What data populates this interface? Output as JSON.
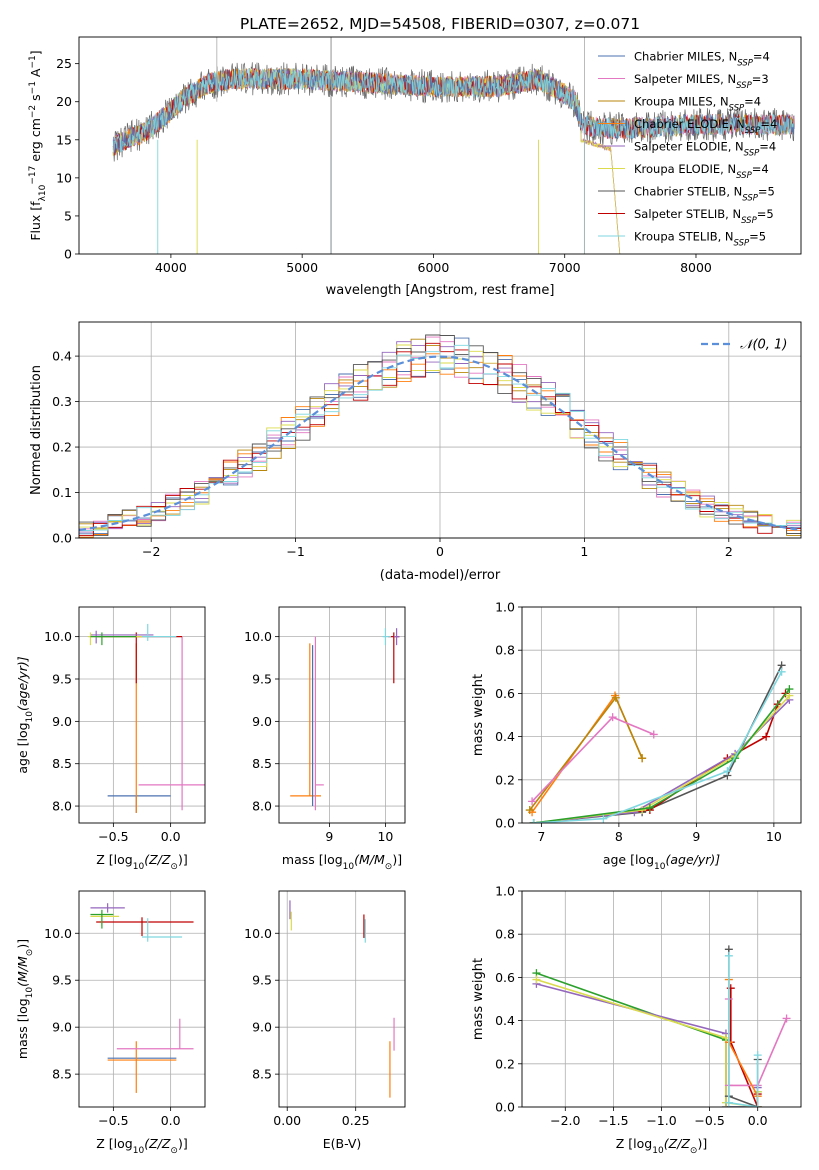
{
  "chart_data": [
    {
      "id": "spectrum",
      "type": "line",
      "title": "PLATE=2652, MJD=54508, FIBERID=0307, z=0.071",
      "xlabel": "wavelength [Angstrom, rest frame]",
      "ylabel": "Flux [f",
      "ylabel_parts": [
        "Flux [f",
        "λ",
        "10",
        "−17",
        " erg cm",
        "−2",
        " s",
        "−1",
        " A",
        "−1",
        "]"
      ],
      "xlim": [
        3300,
        8800
      ],
      "ylim": [
        0,
        28.5
      ],
      "xticks": [
        4000,
        5000,
        6000,
        7000,
        8000
      ],
      "yticks": [
        0,
        5,
        10,
        15,
        20,
        25
      ],
      "grid": false,
      "legend_position": "top-right",
      "legend": [
        {
          "name": "Chabrier MILES, N",
          "sub": "SSP",
          "val": "=4",
          "color": "#4c72b0"
        },
        {
          "name": "Salpeter MILES, N",
          "sub": "SSP",
          "val": "=3",
          "color": "#e377c2"
        },
        {
          "name": "Kroupa MILES, N",
          "sub": "SSP",
          "val": "=4",
          "color": "#b8860b"
        },
        {
          "name": "Chabrier ELODIE, N",
          "sub": "SSP",
          "val": "=4",
          "color": "#ff7f0e"
        },
        {
          "name": "Salpeter ELODIE, N",
          "sub": "SSP",
          "val": "=4",
          "color": "#9467bd"
        },
        {
          "name": "Kroupa ELODIE, N",
          "sub": "SSP",
          "val": "=4",
          "color": "#dbdb4d"
        },
        {
          "name": "Chabrier STELIB, N",
          "sub": "SSP",
          "val": "=5",
          "color": "#555555"
        },
        {
          "name": "Salpeter STELIB, N",
          "sub": "SSP",
          "val": "=5",
          "color": "#c00000"
        },
        {
          "name": "Kroupa STELIB, N",
          "sub": "SSP",
          "val": "=5",
          "color": "#7fd7e0"
        }
      ],
      "continuum": [
        [
          3550,
          14
        ],
        [
          3650,
          15
        ],
        [
          3800,
          16
        ],
        [
          3950,
          18
        ],
        [
          4100,
          20.5
        ],
        [
          4300,
          22.5
        ],
        [
          4500,
          23
        ],
        [
          5000,
          23
        ],
        [
          5500,
          22.5
        ],
        [
          6000,
          22
        ],
        [
          6500,
          22
        ],
        [
          6800,
          23
        ],
        [
          7000,
          21
        ],
        [
          7080,
          20
        ],
        [
          7130,
          17
        ],
        [
          7300,
          16.5
        ],
        [
          7500,
          16.5
        ],
        [
          8000,
          17
        ],
        [
          8700,
          17
        ]
      ],
      "spikes": [
        [
          3900,
          0
        ],
        [
          4200,
          0
        ],
        [
          5220,
          0
        ],
        [
          6800,
          0
        ],
        [
          7150,
          0
        ]
      ]
    },
    {
      "id": "residuals",
      "type": "line",
      "xlabel": "(data-model)/error",
      "ylabel": "Normed distribution",
      "xlim": [
        -2.5,
        2.5
      ],
      "ylim": [
        0,
        0.475
      ],
      "xticks": [
        -2,
        -1,
        0,
        1,
        2
      ],
      "xtick_labels": [
        "−2",
        "−1",
        "0",
        "1",
        "2"
      ],
      "yticks": [
        0,
        0.1,
        0.2,
        0.3,
        0.4
      ],
      "ytick_labels": [
        "0.0",
        "0.1",
        "0.2",
        "0.3",
        "0.4"
      ],
      "grid": true,
      "legend": "𝒩(0, 1)",
      "gaussian": {
        "mean": 0,
        "sigma": 1,
        "color": "#5b8fd9"
      },
      "bin_width": 0.1
    },
    {
      "id": "age-vs-Z",
      "type": "scatter",
      "xlabel": "Z [log",
      "xlabel_parts": [
        "Z [log",
        "10",
        "(Z/Z",
        "⊙",
        ")]"
      ],
      "ylabel_parts": [
        "age  [log",
        "10",
        "(age/yr)]"
      ],
      "xlim": [
        -0.8,
        0.3
      ],
      "ylim": [
        7.8,
        10.35
      ],
      "xticks": [
        -0.5,
        0.0
      ],
      "xtick_labels": [
        "−0.5",
        "0.0"
      ],
      "yticks": [
        8.0,
        8.5,
        9.0,
        9.5,
        10.0
      ],
      "ytick_labels": [
        "8.0",
        "8.5",
        "9.0",
        "9.5",
        "10.0"
      ],
      "grid": true,
      "points": [
        {
          "x": -0.3,
          "y": 8.12,
          "xerr": [
            0.25,
            0.3
          ],
          "yerr": [
            0.2,
            0.0
          ],
          "color": "#4c72b0"
        },
        {
          "x": -0.3,
          "y": 8.12,
          "xerr": [
            0.0,
            0.0
          ],
          "yerr": [
            0.2,
            1.8
          ],
          "color": "#ff7f0e"
        },
        {
          "x": 0.1,
          "y": 8.25,
          "xerr": [
            0.38,
            0.2
          ],
          "yerr": [
            0.3,
            1.75
          ],
          "color": "#e377c2"
        },
        {
          "x": -0.3,
          "y": 10.0,
          "xerr": [
            0.35,
            0.4
          ],
          "yerr": [
            0.55,
            0.05
          ],
          "color": "#c00000"
        },
        {
          "x": -0.65,
          "y": 10.02,
          "xerr": [
            0.05,
            0.5
          ],
          "yerr": [
            0.1,
            0.05
          ],
          "color": "#9467bd"
        },
        {
          "x": -0.7,
          "y": 10.0,
          "xerr": [
            0.02,
            0.5
          ],
          "yerr": [
            0.1,
            0.05
          ],
          "color": "#dbdb4d"
        },
        {
          "x": -0.2,
          "y": 10.0,
          "xerr": [
            0.05,
            0.25
          ],
          "yerr": [
            0.05,
            0.15
          ],
          "color": "#7fd7e0"
        },
        {
          "x": -0.6,
          "y": 10.0,
          "xerr": [
            0.1,
            0.3
          ],
          "yerr": [
            0.1,
            0.05
          ],
          "color": "#2ca02c"
        }
      ]
    },
    {
      "id": "age-vs-mass",
      "type": "scatter",
      "xlabel_parts": [
        "mass [log",
        "10",
        "(M/M",
        "⊙",
        ")]"
      ],
      "xlim": [
        8.1,
        10.35
      ],
      "ylim": [
        7.8,
        10.35
      ],
      "xticks": [
        9,
        10
      ],
      "xtick_labels": [
        "9",
        "10"
      ],
      "yticks": [
        8.0,
        8.5,
        9.0,
        9.5,
        10.0
      ],
      "ytick_labels": [
        "8.0",
        "8.5",
        "9.0",
        "9.5",
        "10.0"
      ],
      "grid": true,
      "points": [
        {
          "x": 8.65,
          "y": 8.12,
          "xerr": [
            0.35,
            0.2
          ],
          "yerr": [
            0.0,
            1.8
          ],
          "color": "#ff7f0e"
        },
        {
          "x": 8.75,
          "y": 8.25,
          "xerr": [
            0.0,
            0.15
          ],
          "yerr": [
            0.3,
            1.75
          ],
          "color": "#e377c2"
        },
        {
          "x": 8.7,
          "y": 9.0,
          "xerr": [
            0.0,
            0.0
          ],
          "yerr": [
            1.0,
            0.9
          ],
          "color": "#4c72b0"
        },
        {
          "x": 10.15,
          "y": 10.0,
          "xerr": [
            0.1,
            0.1
          ],
          "yerr": [
            0.55,
            0.05
          ],
          "color": "#c00000"
        },
        {
          "x": 10.2,
          "y": 10.0,
          "xerr": [
            0.05,
            0.05
          ],
          "yerr": [
            0.1,
            0.1
          ],
          "color": "#9467bd"
        },
        {
          "x": 10.0,
          "y": 10.0,
          "xerr": [
            0.05,
            0.1
          ],
          "yerr": [
            0.1,
            0.1
          ],
          "color": "#7fd7e0"
        }
      ]
    },
    {
      "id": "weight-vs-age",
      "type": "line",
      "xlabel_parts": [
        "age  [log",
        "10",
        "(age/yr)]"
      ],
      "ylabel": "mass weight",
      "xlim": [
        6.75,
        10.35
      ],
      "ylim": [
        0,
        1.0
      ],
      "xticks": [
        7,
        8,
        9,
        10
      ],
      "xtick_labels": [
        "7",
        "8",
        "9",
        "10"
      ],
      "yticks": [
        0,
        0.2,
        0.4,
        0.6,
        0.8,
        1.0
      ],
      "ytick_labels": [
        "0.0",
        "0.2",
        "0.4",
        "0.6",
        "0.8",
        "1.0"
      ],
      "grid": true,
      "series": [
        {
          "color": "#ff7f0e",
          "x": [
            6.88,
            7.95,
            8.3
          ],
          "y": [
            0.05,
            0.59,
            0.3
          ]
        },
        {
          "color": "#b8860b",
          "x": [
            6.85,
            7.96,
            8.3
          ],
          "y": [
            0.06,
            0.58,
            0.3
          ]
        },
        {
          "color": "#e377c2",
          "x": [
            6.88,
            7.92,
            8.45
          ],
          "y": [
            0.1,
            0.49,
            0.41
          ]
        },
        {
          "color": "#555555",
          "x": [
            6.9,
            8.3,
            9.4,
            10.1
          ],
          "y": [
            0.0,
            0.05,
            0.22,
            0.73
          ]
        },
        {
          "color": "#c00000",
          "x": [
            6.9,
            8.4,
            9.4,
            9.9,
            10.05,
            10.15
          ],
          "y": [
            0.0,
            0.06,
            0.3,
            0.4,
            0.55,
            0.6
          ]
        },
        {
          "color": "#9467bd",
          "x": [
            6.9,
            8.2,
            9.5,
            10.2
          ],
          "y": [
            0.0,
            0.05,
            0.32,
            0.57
          ]
        },
        {
          "color": "#dbdb4d",
          "x": [
            6.9,
            8.3,
            9.5,
            10.2
          ],
          "y": [
            0.0,
            0.06,
            0.31,
            0.59
          ]
        },
        {
          "color": "#2ca02c",
          "x": [
            6.9,
            8.4,
            9.5,
            10.2
          ],
          "y": [
            0.0,
            0.07,
            0.3,
            0.62
          ]
        },
        {
          "color": "#7fd7e0",
          "x": [
            6.9,
            7.8,
            9.4,
            10.1
          ],
          "y": [
            0.0,
            0.02,
            0.24,
            0.7
          ]
        }
      ]
    },
    {
      "id": "mass-vs-Z",
      "type": "scatter",
      "xlabel_parts": [
        "Z [log",
        "10",
        "(Z/Z",
        "⊙",
        ")]"
      ],
      "ylabel_parts": [
        "mass [log",
        "10",
        "(M/M",
        "⊙",
        ")]"
      ],
      "xlim": [
        -0.8,
        0.3
      ],
      "ylim": [
        8.15,
        10.45
      ],
      "xticks": [
        -0.5,
        0.0
      ],
      "xtick_labels": [
        "−0.5",
        "0.0"
      ],
      "yticks": [
        8.5,
        9.0,
        9.5,
        10.0
      ],
      "ytick_labels": [
        "8.5",
        "9.0",
        "9.5",
        "10.0"
      ],
      "grid": true,
      "points": [
        {
          "x": -0.3,
          "y": 8.67,
          "xerr": [
            0.25,
            0.35
          ],
          "yerr": [
            0.0,
            0.0
          ],
          "color": "#4c72b0"
        },
        {
          "x": -0.3,
          "y": 8.65,
          "xerr": [
            0.25,
            0.35
          ],
          "yerr": [
            0.35,
            0.2
          ],
          "color": "#ff7f0e"
        },
        {
          "x": 0.08,
          "y": 8.77,
          "xerr": [
            0.55,
            0.12
          ],
          "yerr": [
            0.0,
            0.32
          ],
          "color": "#e377c2"
        },
        {
          "x": -0.25,
          "y": 10.12,
          "xerr": [
            0.4,
            0.45
          ],
          "yerr": [
            0.15,
            0.05
          ],
          "color": "#c00000"
        },
        {
          "x": -0.55,
          "y": 10.27,
          "xerr": [
            0.15,
            0.15
          ],
          "yerr": [
            0.05,
            0.05
          ],
          "color": "#9467bd"
        },
        {
          "x": -0.6,
          "y": 10.18,
          "xerr": [
            0.1,
            0.15
          ],
          "yerr": [
            0.1,
            0.05
          ],
          "color": "#dbdb4d"
        },
        {
          "x": -0.2,
          "y": 9.96,
          "xerr": [
            0.05,
            0.3
          ],
          "yerr": [
            0.05,
            0.2
          ],
          "color": "#7fd7e0"
        },
        {
          "x": -0.6,
          "y": 10.2,
          "xerr": [
            0.1,
            0.1
          ],
          "yerr": [
            0.15,
            0.05
          ],
          "color": "#2ca02c"
        }
      ]
    },
    {
      "id": "mass-vs-EBV",
      "type": "scatter",
      "xlabel": "E(B-V)",
      "xlim": [
        -0.03,
        0.43
      ],
      "ylim": [
        8.15,
        10.45
      ],
      "xticks": [
        0.0,
        0.25
      ],
      "xtick_labels": [
        "0.00",
        "0.25"
      ],
      "yticks": [
        8.5,
        9.0,
        9.5,
        10.0
      ],
      "ytick_labels": [
        "8.5",
        "9.0",
        "9.5",
        "10.0"
      ],
      "grid": true,
      "points": [
        {
          "x": 0.01,
          "y": 10.25,
          "xerr": [
            0,
            0
          ],
          "yerr": [
            0.1,
            0.1
          ],
          "color": "#9467bd"
        },
        {
          "x": 0.015,
          "y": 10.18,
          "xerr": [
            0,
            0
          ],
          "yerr": [
            0.15,
            0.05
          ],
          "color": "#dbdb4d"
        },
        {
          "x": 0.28,
          "y": 10.1,
          "xerr": [
            0,
            0
          ],
          "yerr": [
            0.15,
            0.1
          ],
          "color": "#c00000"
        },
        {
          "x": 0.285,
          "y": 10.0,
          "xerr": [
            0,
            0
          ],
          "yerr": [
            0.1,
            0.15
          ],
          "color": "#7fd7e0"
        },
        {
          "x": 0.375,
          "y": 8.55,
          "xerr": [
            0,
            0
          ],
          "yerr": [
            0.3,
            0.3
          ],
          "color": "#ff7f0e"
        },
        {
          "x": 0.39,
          "y": 8.95,
          "xerr": [
            0,
            0
          ],
          "yerr": [
            0.2,
            0.15
          ],
          "color": "#e377c2"
        }
      ]
    },
    {
      "id": "weight-vs-Z",
      "type": "line",
      "xlabel_parts": [
        "Z [log",
        "10",
        "(Z/Z",
        "⊙",
        ")]"
      ],
      "ylabel": "mass weight",
      "xlim": [
        -2.45,
        0.45
      ],
      "ylim": [
        0,
        1.0
      ],
      "xticks": [
        -2.0,
        -1.5,
        -1.0,
        -0.5,
        0.0
      ],
      "xtick_labels": [
        "−2.0",
        "−1.5",
        "−1.0",
        "−0.5",
        "0.0"
      ],
      "yticks": [
        0,
        0.2,
        0.4,
        0.6,
        0.8,
        1.0
      ],
      "ytick_labels": [
        "0.0",
        "0.2",
        "0.4",
        "0.6",
        "0.8",
        "1.0"
      ],
      "grid": true,
      "series": [
        {
          "color": "#2ca02c",
          "x": [
            -2.3,
            -0.33,
            -0.33,
            0.0,
            0.0
          ],
          "y": [
            0.62,
            0.31,
            0.0,
            0.0,
            0.07
          ]
        },
        {
          "color": "#9467bd",
          "x": [
            -2.3,
            -0.33,
            -0.33,
            0.0,
            0.0
          ],
          "y": [
            0.57,
            0.34,
            0.0,
            0.0,
            0.09
          ]
        },
        {
          "color": "#dbdb4d",
          "x": [
            -2.3,
            -0.33,
            -0.33,
            0.0,
            0.0
          ],
          "y": [
            0.59,
            0.32,
            0.02,
            0.0,
            0.07
          ]
        },
        {
          "color": "#555555",
          "x": [
            -0.3,
            -0.3,
            0.0,
            0.0
          ],
          "y": [
            0.73,
            0.05,
            0.0,
            0.22
          ]
        },
        {
          "color": "#c00000",
          "x": [
            -0.28,
            -0.28,
            0.0,
            0.0
          ],
          "y": [
            0.55,
            0.3,
            0.0,
            0.06
          ]
        },
        {
          "color": "#e377c2",
          "x": [
            -0.3,
            -0.3,
            0.0,
            0.3
          ],
          "y": [
            0.5,
            0.1,
            0.1,
            0.41
          ]
        },
        {
          "color": "#ff7f0e",
          "x": [
            -0.3,
            -0.3,
            0.0,
            0.0
          ],
          "y": [
            0.59,
            0.3,
            0.05,
            0.0
          ]
        },
        {
          "color": "#7fd7e0",
          "x": [
            -0.3,
            -0.3,
            0.0,
            0.0
          ],
          "y": [
            0.7,
            0.02,
            0.0,
            0.24
          ]
        }
      ]
    }
  ]
}
